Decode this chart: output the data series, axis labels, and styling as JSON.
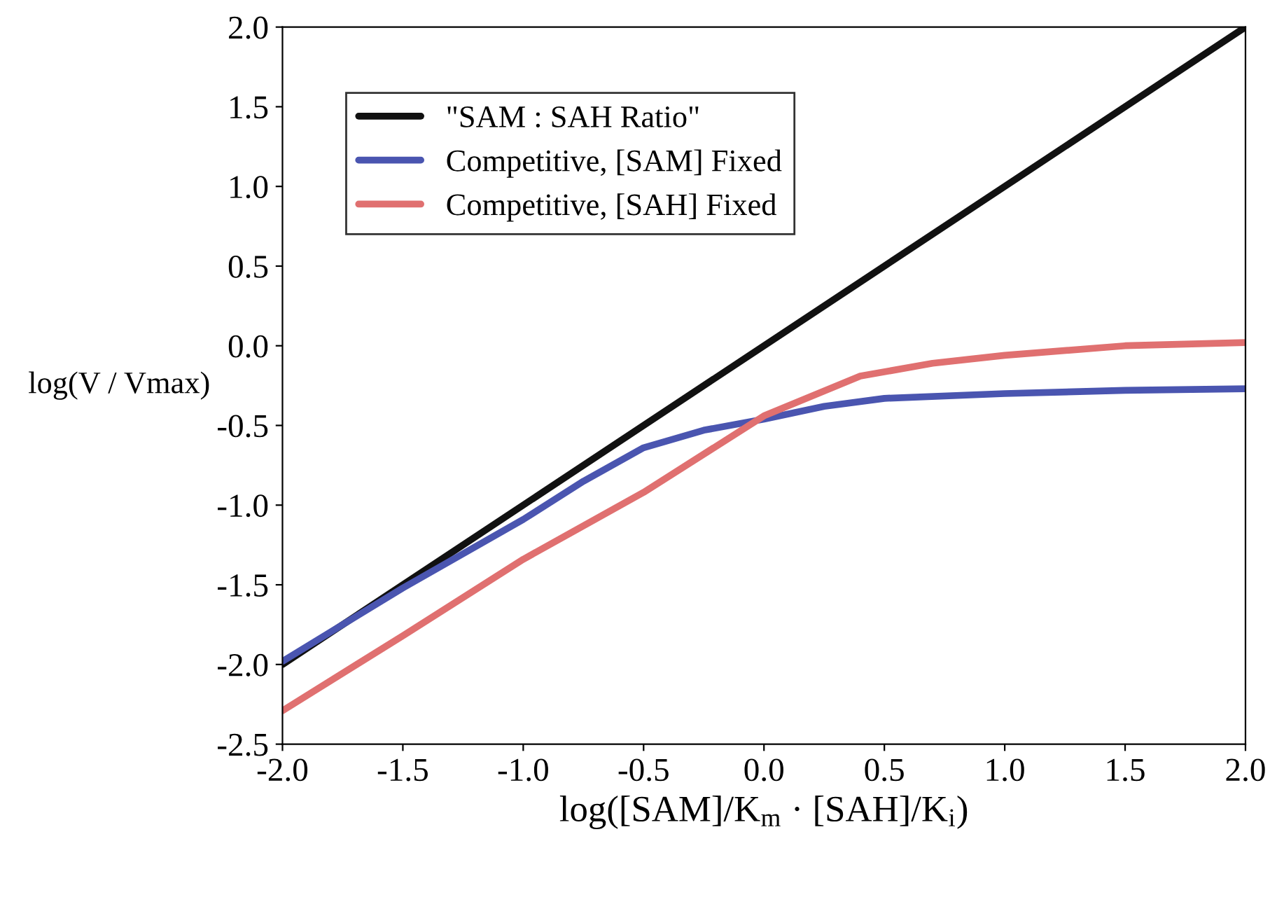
{
  "chart_data": {
    "type": "line",
    "xlabel": "log([SAM]/K$_{m}$ · [SAH]/K$_{i}$)",
    "ylabel": "log(V / Vmax)",
    "xlim": [
      -2.0,
      2.0
    ],
    "ylim": [
      -2.5,
      2.0
    ],
    "xticks": [
      {
        "value": -2.0,
        "label": "-2.0"
      },
      {
        "value": -1.5,
        "label": "-1.5"
      },
      {
        "value": -1.0,
        "label": "-1.0"
      },
      {
        "value": -0.5,
        "label": "-0.5"
      },
      {
        "value": 0.0,
        "label": "0.0"
      },
      {
        "value": 0.5,
        "label": "0.5"
      },
      {
        "value": 1.0,
        "label": "1.0"
      },
      {
        "value": 1.5,
        "label": "1.5"
      },
      {
        "value": 2.0,
        "label": "2.0"
      }
    ],
    "yticks": [
      {
        "value": -2.5,
        "label": "-2.5"
      },
      {
        "value": -2.0,
        "label": "-2.0"
      },
      {
        "value": -1.5,
        "label": "-1.5"
      },
      {
        "value": -1.0,
        "label": "-1.0"
      },
      {
        "value": -0.5,
        "label": "-0.5"
      },
      {
        "value": 0.0,
        "label": "0.0"
      },
      {
        "value": 0.5,
        "label": "0.5"
      },
      {
        "value": 1.0,
        "label": "1.0"
      },
      {
        "value": 1.5,
        "label": "1.5"
      },
      {
        "value": 2.0,
        "label": "2.0"
      }
    ],
    "grid": false,
    "legend": "top left",
    "marker": "none",
    "line_style": "solid",
    "series": [
      {
        "name": "\"SAM : SAH Ratio\"",
        "color": "#111111",
        "x": [
          -2.0,
          2.0
        ],
        "values": [
          -2.0,
          2.0
        ]
      },
      {
        "name": "Competitive, [SAM] Fixed",
        "color": "#4a55b0",
        "x": [
          -2.0,
          -1.5,
          -1.0,
          -0.75,
          -0.5,
          -0.25,
          0.0,
          0.25,
          0.5,
          1.0,
          1.5,
          2.0
        ],
        "values": [
          -1.98,
          -1.52,
          -1.09,
          -0.85,
          -0.64,
          -0.53,
          -0.46,
          -0.38,
          -0.33,
          -0.3,
          -0.28,
          -0.27
        ]
      },
      {
        "name": "Competitive, [SAH] Fixed",
        "color": "#e07070",
        "x": [
          -2.0,
          -1.5,
          -1.0,
          -0.5,
          0.0,
          0.4,
          0.7,
          1.0,
          1.5,
          2.0
        ],
        "values": [
          -2.29,
          -1.82,
          -1.34,
          -0.92,
          -0.44,
          -0.19,
          -0.11,
          -0.06,
          0.0,
          0.02
        ]
      }
    ]
  }
}
